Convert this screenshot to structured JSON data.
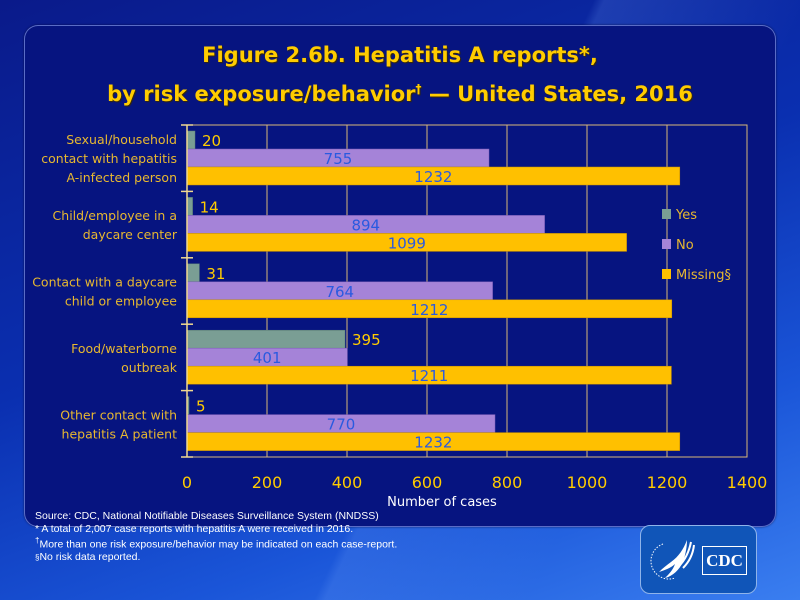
{
  "title": {
    "line1": "Figure 2.6b. Hepatitis A reports*,",
    "line2_pre": "by risk exposure/behavior",
    "line2_sup": "†",
    "line2_post": " — United States, 2016"
  },
  "chart_data": {
    "type": "bar",
    "orientation": "horizontal",
    "title": "Figure 2.6b. Hepatitis A reports*, by risk exposure/behavior† — United States, 2016",
    "xlabel": "Number of cases",
    "ylabel": "",
    "xlim": [
      0,
      1400
    ],
    "xticks": [
      0,
      200,
      400,
      600,
      800,
      1000,
      1200,
      1400
    ],
    "grid": true,
    "legend_position": "right",
    "categories": [
      [
        "Sexual/household",
        "contact with hepatitis",
        "A-infected person"
      ],
      [
        "Child/employee in a",
        "daycare center"
      ],
      [
        "Contact with a daycare",
        "child or employee"
      ],
      [
        "Food/waterborne",
        "outbreak"
      ],
      [
        "Other contact with",
        "hepatitis A patient"
      ]
    ],
    "series": [
      {
        "name": "Yes",
        "color": "#7a9e94",
        "values": [
          20,
          14,
          31,
          395,
          5
        ]
      },
      {
        "name": "No",
        "color": "#a583d8",
        "values": [
          755,
          894,
          764,
          401,
          770
        ]
      },
      {
        "name": "Missing§",
        "color": "#ffc000",
        "values": [
          1232,
          1099,
          1212,
          1211,
          1232
        ]
      }
    ]
  },
  "notes": {
    "source": "Source: CDC, National Notifiable Diseases Surveillance System (NNDSS)",
    "note1": "* A total of 2,007 case reports with hepatitis A were received in 2016.",
    "note2_sym": "†",
    "note2": "More than one risk exposure/behavior may be indicated on each case-report.",
    "note3_sym": "§",
    "note3": "No risk data reported."
  },
  "logo": {
    "text": "CDC",
    "icon": "hhs-eagle-icon"
  },
  "colors": {
    "title": "#ffcc00",
    "panel": "#061480",
    "grid": "#d8b878"
  }
}
